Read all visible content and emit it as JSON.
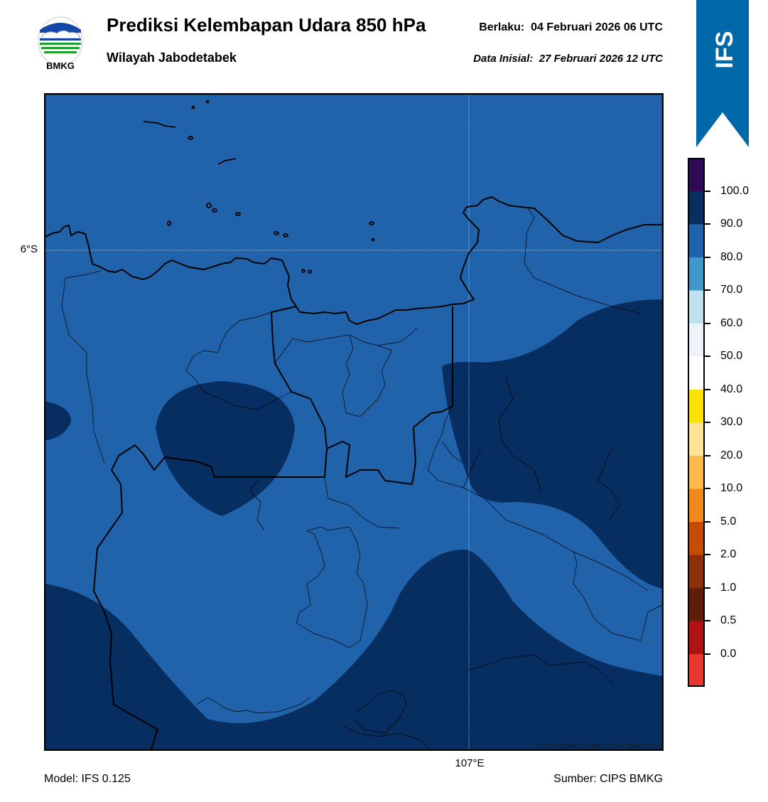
{
  "header": {
    "title": "Prediksi Kelembapan Udara 850 hPa",
    "region": "Wilayah Jabodetabek",
    "valid_label": "Berlaku:",
    "valid_time": "04 Februari 2026 06 UTC",
    "init_label": "Data Inisial:",
    "init_time": "27 Februari 2026 12 UTC"
  },
  "logo": {
    "text": "BMKG",
    "icon": "bmkg-logo"
  },
  "ribbon": {
    "text": "IFS",
    "color": "#0067a8"
  },
  "map": {
    "lat_label": "6°S",
    "lon_label": "107°E",
    "credit": "©Sub Bidang Prediksi Cuaca BMKG, 2020",
    "fill_colors": {
      "band_80_90": "#2163aa",
      "band_90_100": "#072e61"
    }
  },
  "footer": {
    "model": "Model: IFS 0.125",
    "source": "Sumber: CIPS BMKG"
  },
  "colorbar": {
    "labels": [
      "100.0",
      "90.0",
      "80.0",
      "70.0",
      "60.0",
      "50.0",
      "40.0",
      "30.0",
      "20.0",
      "10.0",
      "5.0",
      "2.0",
      "1.0",
      "0.5",
      "0.0"
    ],
    "colors": [
      "#e8382d",
      "#b01313",
      "#5e1e07",
      "#8c300a",
      "#c54c04",
      "#f18a1b",
      "#fdba49",
      "#fee399",
      "#fee300",
      "#ffffff",
      "#eef3fa",
      "#bfe0ee",
      "#4198c8",
      "#2163aa",
      "#072e61",
      "#2c0a55"
    ]
  }
}
